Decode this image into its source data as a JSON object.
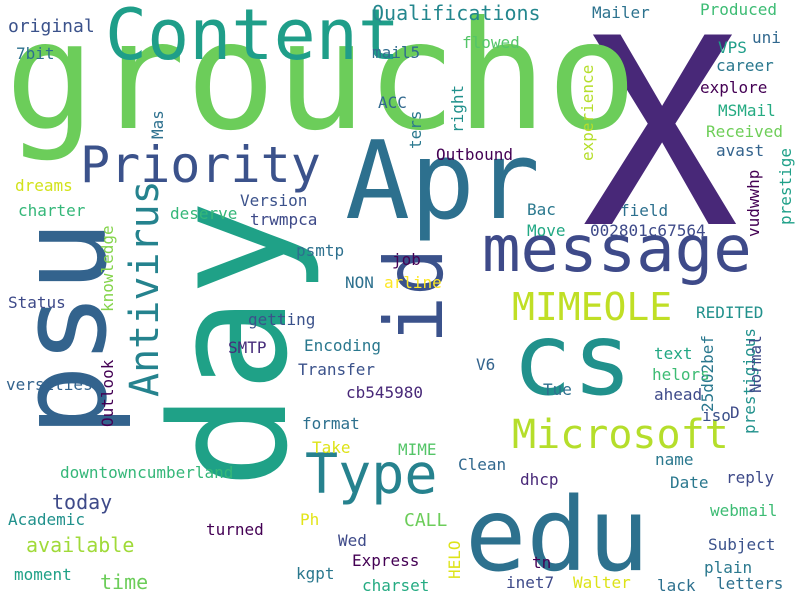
{
  "words": [
    {
      "text": "X",
      "color": "#482878"
    },
    {
      "text": "groucho",
      "color": "#6ccd5a"
    },
    {
      "text": "day",
      "color": "#1fa187"
    },
    {
      "text": "psu",
      "color": "#33638d"
    },
    {
      "text": "Apr",
      "color": "#2d708e"
    },
    {
      "text": "edu",
      "color": "#2d718e"
    },
    {
      "text": "cs",
      "color": "#21918c"
    },
    {
      "text": "id",
      "color": "#3b528b"
    },
    {
      "text": "Content",
      "color": "#1f9e89"
    },
    {
      "text": "message",
      "color": "#3e4a89"
    },
    {
      "text": "Priority",
      "color": "#3b528b"
    },
    {
      "text": "Type",
      "color": "#26828e"
    },
    {
      "text": "Microsoft",
      "color": "#b5de2b"
    },
    {
      "text": "MIMEOLE",
      "color": "#c0df25"
    },
    {
      "text": "Antivirus",
      "color": "#25838e"
    },
    {
      "text": "Qualifications",
      "color": "#24878e"
    },
    {
      "text": "original",
      "color": "#3b528b"
    },
    {
      "text": "7bit",
      "color": "#2d708e"
    },
    {
      "text": "Mailer",
      "color": "#2c728e"
    },
    {
      "text": "Produced",
      "color": "#3dbc74"
    },
    {
      "text": "uni",
      "color": "#31688e"
    },
    {
      "text": "VPS",
      "color": "#1f9e89"
    },
    {
      "text": "career",
      "color": "#2a788e"
    },
    {
      "text": "explore",
      "color": "#440154"
    },
    {
      "text": "MSMail",
      "color": "#25ab82"
    },
    {
      "text": "Received",
      "color": "#6ece58"
    },
    {
      "text": "avast",
      "color": "#33638d"
    },
    {
      "text": "prestige",
      "color": "#1fa088"
    },
    {
      "text": "mail5",
      "color": "#2f6c8e"
    },
    {
      "text": "flowed",
      "color": "#54c568"
    },
    {
      "text": "ACC",
      "color": "#31688e"
    },
    {
      "text": "right",
      "color": "#21918c"
    },
    {
      "text": "ters",
      "color": "#2a788e"
    },
    {
      "text": "experience",
      "color": "#b5de2b"
    },
    {
      "text": "Mas",
      "color": "#2d708e"
    },
    {
      "text": "Outbound",
      "color": "#440154"
    },
    {
      "text": "Version",
      "color": "#3b528b"
    },
    {
      "text": "trwmpca",
      "color": "#3e4a89"
    },
    {
      "text": "vudwwhp",
      "color": "#440154"
    },
    {
      "text": "field",
      "color": "#2d708e"
    },
    {
      "text": "Bac",
      "color": "#2a788e"
    },
    {
      "text": "Move",
      "color": "#22a884"
    },
    {
      "text": "002801c67564",
      "color": "#3e4a89"
    },
    {
      "text": "dreams",
      "color": "#d2e21b"
    },
    {
      "text": "charter",
      "color": "#35b779"
    },
    {
      "text": "deserve",
      "color": "#35b779"
    },
    {
      "text": "psmtp",
      "color": "#2d708e"
    },
    {
      "text": "job",
      "color": "#440154"
    },
    {
      "text": "arline",
      "color": "#fde725"
    },
    {
      "text": "NON",
      "color": "#2d708e"
    },
    {
      "text": "knowledge",
      "color": "#84d44b"
    },
    {
      "text": "Status",
      "color": "#3e4a89"
    },
    {
      "text": "getting",
      "color": "#3b528b"
    },
    {
      "text": "REDITED",
      "color": "#21918c"
    },
    {
      "text": "prestigious",
      "color": "#21918c"
    },
    {
      "text": "Normal",
      "color": "#3e4a89"
    },
    {
      "text": "SMTP",
      "color": "#472d7b"
    },
    {
      "text": "Encoding",
      "color": "#2a788e"
    },
    {
      "text": "text",
      "color": "#22a884"
    },
    {
      "text": "25d02bef",
      "color": "#2a788e"
    },
    {
      "text": "V6",
      "color": "#33638d"
    },
    {
      "text": "Transfer",
      "color": "#3b528b"
    },
    {
      "text": "helors",
      "color": "#3dbc74"
    },
    {
      "text": "cb545980",
      "color": "#482878"
    },
    {
      "text": "ahead",
      "color": "#3e4a89"
    },
    {
      "text": "D",
      "color": "#3e4a89"
    },
    {
      "text": "versities",
      "color": "#33638d"
    },
    {
      "text": "Outlook",
      "color": "#440154"
    },
    {
      "text": "Tue",
      "color": "#2d708e"
    },
    {
      "text": "iso",
      "color": "#3b528b"
    },
    {
      "text": "format",
      "color": "#2d708e"
    },
    {
      "text": "Take",
      "color": "#dde318"
    },
    {
      "text": "MIME",
      "color": "#54c568"
    },
    {
      "text": "Clean",
      "color": "#31688e"
    },
    {
      "text": "name",
      "color": "#2a788e"
    },
    {
      "text": "downtowncumberland",
      "color": "#35b779"
    },
    {
      "text": "Date",
      "color": "#2a788e"
    },
    {
      "text": "dhcp",
      "color": "#482878"
    },
    {
      "text": "reply",
      "color": "#3e4a89"
    },
    {
      "text": "today",
      "color": "#3e4a89"
    },
    {
      "text": "Academic",
      "color": "#21918c"
    },
    {
      "text": "webmail",
      "color": "#3dbc74"
    },
    {
      "text": "available",
      "color": "#a0da39"
    },
    {
      "text": "CALL",
      "color": "#6ccd5a"
    },
    {
      "text": "turned",
      "color": "#440154"
    },
    {
      "text": "Ph",
      "color": "#e2e418"
    },
    {
      "text": "Wed",
      "color": "#3e4a89"
    },
    {
      "text": "Subject",
      "color": "#3b528b"
    },
    {
      "text": "Express",
      "color": "#440154"
    },
    {
      "text": "time",
      "color": "#6ccd5a"
    },
    {
      "text": "HELO",
      "color": "#dde318"
    },
    {
      "text": "tn",
      "color": "#440154"
    },
    {
      "text": "plain",
      "color": "#2a788e"
    },
    {
      "text": "moment",
      "color": "#1fa187"
    },
    {
      "text": "kgpt",
      "color": "#2a788e"
    },
    {
      "text": "charset",
      "color": "#25ab82"
    },
    {
      "text": "inet7",
      "color": "#3e4a89"
    },
    {
      "text": "Walter",
      "color": "#dde318"
    },
    {
      "text": "lack",
      "color": "#2d708e"
    },
    {
      "text": "letters",
      "color": "#2d708e"
    }
  ]
}
